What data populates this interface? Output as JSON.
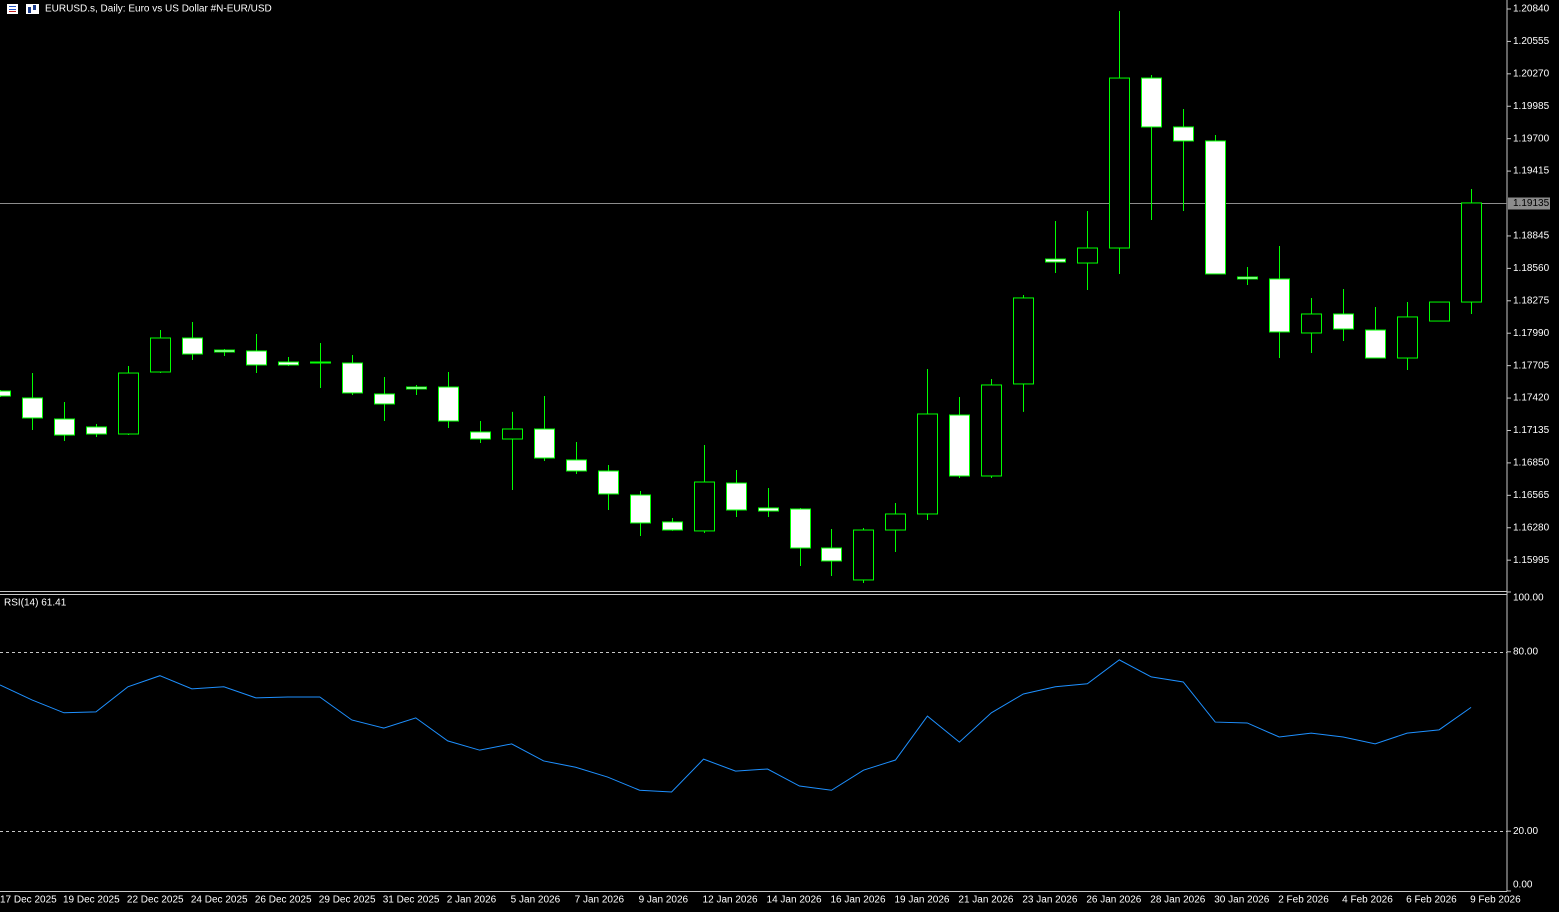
{
  "chart_data": [
    {
      "type": "candlestick",
      "title": "EURUSD.s, Daily:  Euro vs US Dollar #N-EUR/USD",
      "categories": [
        "17 Dec 2025",
        null,
        "19 Dec 2025",
        null,
        "22 Dec 2025",
        null,
        "24 Dec 2025",
        null,
        "26 Dec 2025",
        null,
        "29 Dec 2025",
        null,
        "31 Dec 2025",
        null,
        "2 Jan 2026",
        null,
        "5 Jan 2026",
        null,
        "7 Jan 2026",
        null,
        "9 Jan 2026",
        null,
        "12 Jan 2026",
        null,
        "14 Jan 2026",
        null,
        "16 Jan 2026",
        null,
        "19 Jan 2026",
        null,
        "21 Jan 2026",
        null,
        "23 Jan 2026",
        null,
        "26 Jan 2026",
        null,
        "28 Jan 2026",
        null,
        "30 Jan 2026",
        null,
        "2 Feb 2026",
        null,
        "4 Feb 2026",
        null,
        "6 Feb 2026",
        null,
        "9 Feb 2026"
      ],
      "open": [
        1.17482,
        1.17421,
        1.17236,
        1.17166,
        1.17104,
        1.17649,
        1.17948,
        1.17842,
        1.17834,
        1.17737,
        1.17737,
        1.17728,
        1.17456,
        1.17517,
        1.17517,
        1.17122,
        1.1706,
        1.17148,
        1.16876,
        1.16779,
        1.16568,
        1.16331,
        1.16252,
        1.16673,
        1.16454,
        1.16445,
        1.16102,
        1.15821,
        1.1626,
        1.16401,
        1.17271,
        1.16735,
        1.17544,
        1.18642,
        1.18607,
        1.18739,
        1.20233,
        1.19803,
        1.1968,
        1.18484,
        1.18467,
        1.17992,
        1.18159,
        1.18018,
        1.17772,
        1.18097,
        1.18264
      ],
      "high": [
        1.17491,
        1.1764,
        1.17385,
        1.17192,
        1.17702,
        1.18018,
        1.18089,
        1.17851,
        1.17983,
        1.17781,
        1.17904,
        1.17799,
        1.17605,
        1.17535,
        1.17649,
        1.17218,
        1.17298,
        1.17438,
        1.17034,
        1.16832,
        1.16603,
        1.16366,
        1.17007,
        1.16788,
        1.16629,
        1.16454,
        1.16269,
        1.16278,
        1.16498,
        1.17675,
        1.17429,
        1.17588,
        1.18326,
        1.18976,
        1.19064,
        1.20822,
        1.2026,
        1.19961,
        1.19732,
        1.18572,
        1.18757,
        1.183,
        1.18379,
        1.1822,
        1.18264,
        1.18264,
        1.19258
      ],
      "low": [
        1.17429,
        1.17139,
        1.17043,
        1.17078,
        1.17095,
        1.1764,
        1.17755,
        1.1779,
        1.1764,
        1.17702,
        1.17508,
        1.17447,
        1.17218,
        1.17447,
        1.17157,
        1.17025,
        1.16612,
        1.16867,
        1.16753,
        1.16436,
        1.16208,
        1.16252,
        1.16234,
        1.16375,
        1.16375,
        1.15944,
        1.15856,
        1.15794,
        1.16067,
        1.16348,
        1.16717,
        1.16717,
        1.17298,
        1.18519,
        1.1837,
        1.18511,
        1.18985,
        1.19064,
        1.18511,
        1.18414,
        1.17772,
        1.17816,
        1.17922,
        1.17772,
        1.17667,
        1.18097,
        1.18159
      ],
      "close": [
        1.17438,
        1.17245,
        1.17095,
        1.17104,
        1.1764,
        1.17948,
        1.17807,
        1.17825,
        1.17711,
        1.17711,
        1.17728,
        1.17465,
        1.17368,
        1.175,
        1.17218,
        1.1706,
        1.17148,
        1.16893,
        1.16779,
        1.16577,
        1.16322,
        1.1626,
        1.16682,
        1.16436,
        1.16427,
        1.16102,
        1.15988,
        1.1626,
        1.16401,
        1.1728,
        1.16735,
        1.17535,
        1.183,
        1.18616,
        1.18739,
        1.20233,
        1.19803,
        1.1968,
        1.18511,
        1.18467,
        1.18001,
        1.18159,
        1.18027,
        1.17772,
        1.18133,
        1.18264,
        1.19135
      ],
      "ylim": [
        1.15724,
        1.20919
      ],
      "yticks": [
        {
          "value": 1.2084,
          "label": "1.20840"
        },
        {
          "value": 1.20555,
          "label": "1.20555"
        },
        {
          "value": 1.2027,
          "label": "1.20270"
        },
        {
          "value": 1.19985,
          "label": "1.19985"
        },
        {
          "value": 1.197,
          "label": "1.19700"
        },
        {
          "value": 1.19415,
          "label": "1.19415"
        },
        {
          "value": 1.18845,
          "label": "1.18845"
        },
        {
          "value": 1.1856,
          "label": "1.18560"
        },
        {
          "value": 1.18275,
          "label": "1.18275"
        },
        {
          "value": 1.1799,
          "label": "1.17990"
        },
        {
          "value": 1.17705,
          "label": "1.17705"
        },
        {
          "value": 1.1742,
          "label": "1.17420"
        },
        {
          "value": 1.17135,
          "label": "1.17135"
        },
        {
          "value": 1.1685,
          "label": "1.16850"
        },
        {
          "value": 1.16565,
          "label": "1.16565"
        },
        {
          "value": 1.1628,
          "label": "1.16280"
        },
        {
          "value": 1.15995,
          "label": "1.15995"
        }
      ],
      "current_price": {
        "value": 1.19135,
        "label": "1.19135"
      },
      "outline_color": "#00ff00",
      "bull_fill": "#000000",
      "bear_fill": "#ffffff"
    },
    {
      "type": "line",
      "title": "RSI(14) 61.41",
      "values": [
        68.9,
        63.9,
        59.6,
        59.9,
        68.3,
        72.0,
        67.6,
        68.3,
        64.6,
        64.9,
        64.9,
        57.2,
        54.5,
        57.9,
        50.2,
        47.1,
        49.2,
        43.5,
        41.4,
        38.1,
        33.7,
        33.1,
        44.1,
        40.1,
        40.8,
        35.1,
        33.7,
        40.4,
        43.8,
        58.5,
        49.8,
        59.6,
        65.9,
        68.3,
        69.3,
        77.3,
        71.6,
        69.9,
        56.5,
        56.2,
        51.5,
        52.8,
        51.5,
        49.2,
        52.8,
        53.9,
        61.41
      ],
      "color": "#1e90ff",
      "ylim": [
        0,
        100
      ],
      "yticks": [
        {
          "value": 100,
          "label": "100.00"
        },
        {
          "value": 80,
          "label": "80.00"
        },
        {
          "value": 20,
          "label": "20.00"
        },
        {
          "value": 0,
          "label": "0.00"
        }
      ],
      "levels": [
        80,
        20
      ]
    }
  ]
}
